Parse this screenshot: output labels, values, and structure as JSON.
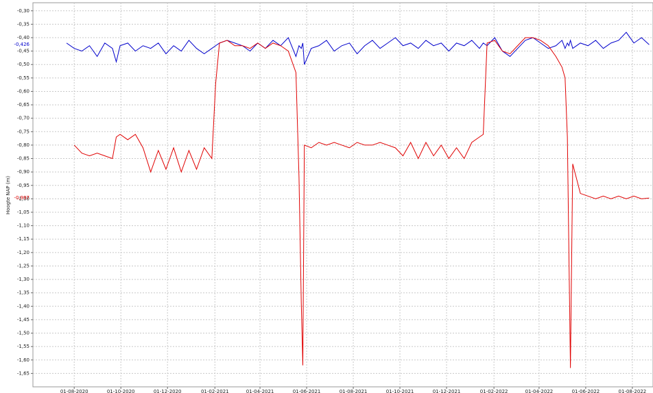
{
  "chart_data": {
    "type": "line",
    "y_label": "Hoogte NAP (m)",
    "x": [
      "2020-07-22",
      "2020-08-01",
      "2020-08-11",
      "2020-08-21",
      "2020-08-31",
      "2020-09-10",
      "2020-09-20",
      "2020-09-25",
      "2020-09-30",
      "2020-10-10",
      "2020-10-20",
      "2020-10-30",
      "2020-11-09",
      "2020-11-19",
      "2020-11-29",
      "2020-12-09",
      "2020-12-19",
      "2020-12-29",
      "2021-01-08",
      "2021-01-18",
      "2021-01-28",
      "2021-02-02",
      "2021-02-07",
      "2021-02-17",
      "2021-02-27",
      "2021-03-09",
      "2021-03-19",
      "2021-03-29",
      "2021-04-08",
      "2021-04-18",
      "2021-04-28",
      "2021-05-08",
      "2021-05-18",
      "2021-05-22",
      "2021-05-25",
      "2021-05-27",
      "2021-05-29",
      "2021-06-07",
      "2021-06-17",
      "2021-06-27",
      "2021-07-07",
      "2021-07-17",
      "2021-07-27",
      "2021-08-06",
      "2021-08-16",
      "2021-08-26",
      "2021-09-05",
      "2021-09-15",
      "2021-09-25",
      "2021-10-05",
      "2021-10-15",
      "2021-10-25",
      "2021-11-04",
      "2021-11-14",
      "2021-11-24",
      "2021-12-04",
      "2021-12-14",
      "2021-12-24",
      "2022-01-03",
      "2022-01-13",
      "2022-01-18",
      "2022-01-23",
      "2022-02-02",
      "2022-02-12",
      "2022-02-22",
      "2022-03-04",
      "2022-03-14",
      "2022-03-24",
      "2022-04-03",
      "2022-04-13",
      "2022-04-23",
      "2022-05-01",
      "2022-05-05",
      "2022-05-08",
      "2022-05-10",
      "2022-05-12",
      "2022-05-15",
      "2022-05-25",
      "2022-06-04",
      "2022-06-14",
      "2022-06-24",
      "2022-07-04",
      "2022-07-14",
      "2022-07-24",
      "2022-08-03",
      "2022-08-13",
      "2022-08-23"
    ],
    "series": [
      {
        "color": "#0000cc",
        "values": [
          -0.42,
          -0.44,
          -0.45,
          -0.43,
          -0.47,
          -0.42,
          -0.44,
          -0.49,
          -0.43,
          -0.42,
          -0.45,
          -0.43,
          -0.44,
          -0.42,
          -0.46,
          -0.43,
          -0.45,
          -0.41,
          -0.44,
          -0.46,
          -0.44,
          -0.43,
          -0.42,
          -0.41,
          -0.42,
          -0.43,
          -0.45,
          -0.42,
          -0.44,
          -0.41,
          -0.43,
          -0.4,
          -0.47,
          -0.43,
          -0.44,
          -0.42,
          -0.5,
          -0.44,
          -0.43,
          -0.41,
          -0.45,
          -0.43,
          -0.42,
          -0.46,
          -0.43,
          -0.41,
          -0.44,
          -0.42,
          -0.4,
          -0.43,
          -0.42,
          -0.44,
          -0.41,
          -0.43,
          -0.42,
          -0.45,
          -0.42,
          -0.43,
          -0.41,
          -0.44,
          -0.42,
          -0.43,
          -0.4,
          -0.45,
          -0.47,
          -0.44,
          -0.41,
          -0.4,
          -0.42,
          -0.44,
          -0.43,
          -0.41,
          -0.44,
          -0.42,
          -0.43,
          -0.41,
          -0.44,
          -0.42,
          -0.43,
          -0.41,
          -0.44,
          -0.42,
          -0.41,
          -0.38,
          -0.42,
          -0.4,
          -0.426
        ]
      },
      {
        "color": "#e00000",
        "values": [
          null,
          -0.8,
          -0.83,
          -0.84,
          -0.83,
          -0.84,
          -0.85,
          -0.77,
          -0.76,
          -0.78,
          -0.76,
          -0.81,
          -0.9,
          -0.82,
          -0.89,
          -0.81,
          -0.9,
          -0.82,
          -0.89,
          -0.81,
          -0.85,
          -0.57,
          -0.42,
          -0.41,
          -0.43,
          -0.43,
          -0.44,
          -0.42,
          -0.44,
          -0.42,
          -0.43,
          -0.45,
          -0.53,
          -0.92,
          -1.39,
          -1.62,
          -0.8,
          -0.81,
          -0.79,
          -0.8,
          -0.79,
          -0.8,
          -0.81,
          -0.79,
          -0.8,
          -0.8,
          -0.79,
          -0.8,
          -0.81,
          -0.84,
          -0.79,
          -0.85,
          -0.79,
          -0.84,
          -0.8,
          -0.85,
          -0.81,
          -0.85,
          -0.79,
          -0.77,
          -0.76,
          -0.42,
          -0.41,
          -0.45,
          -0.46,
          -0.43,
          -0.4,
          -0.4,
          -0.41,
          -0.43,
          -0.47,
          -0.51,
          -0.55,
          -0.77,
          -1.2,
          -1.63,
          -0.87,
          -0.98,
          -0.99,
          -1.0,
          -0.99,
          -1.0,
          -0.99,
          -1.0,
          -0.99,
          -1.0,
          -0.997
        ]
      }
    ],
    "current_labels": [
      {
        "value": -0.426,
        "label": "-0,426",
        "color": "#0000cc"
      },
      {
        "value": -0.997,
        "label": "-0,997",
        "color": "#e00000"
      }
    ],
    "xlim": [
      "2020-06-08",
      "2022-08-28"
    ],
    "xticks": [
      {
        "value": "2020-08-01",
        "label": "01-08-2020"
      },
      {
        "value": "2020-10-01",
        "label": "01-10-2020"
      },
      {
        "value": "2020-12-01",
        "label": "01-12-2020"
      },
      {
        "value": "2021-02-01",
        "label": "01-02-2021"
      },
      {
        "value": "2021-04-01",
        "label": "01-04-2021"
      },
      {
        "value": "2021-06-01",
        "label": "01-06-2021"
      },
      {
        "value": "2021-08-01",
        "label": "01-08-2021"
      },
      {
        "value": "2021-10-01",
        "label": "01-10-2021"
      },
      {
        "value": "2021-12-01",
        "label": "01-12-2021"
      },
      {
        "value": "2022-02-01",
        "label": "01-02-2022"
      },
      {
        "value": "2022-04-01",
        "label": "01-04-2022"
      },
      {
        "value": "2022-06-01",
        "label": "01-06-2022"
      },
      {
        "value": "2022-08-01",
        "label": "01-08-2022"
      }
    ],
    "ylim": [
      -1.7,
      -0.27
    ],
    "yticks": [
      {
        "value": -0.3,
        "label": "-0,30"
      },
      {
        "value": -0.35,
        "label": "-0,35"
      },
      {
        "value": -0.4,
        "label": "-0,40"
      },
      {
        "value": -0.45,
        "label": "-0,45"
      },
      {
        "value": -0.5,
        "label": "-0,50"
      },
      {
        "value": -0.55,
        "label": "-0,55"
      },
      {
        "value": -0.6,
        "label": "-0,60"
      },
      {
        "value": -0.65,
        "label": "-0,65"
      },
      {
        "value": -0.7,
        "label": "-0,70"
      },
      {
        "value": -0.75,
        "label": "-0,75"
      },
      {
        "value": -0.8,
        "label": "-0,80"
      },
      {
        "value": -0.85,
        "label": "-0,85"
      },
      {
        "value": -0.9,
        "label": "-0,90"
      },
      {
        "value": -0.95,
        "label": "-0,95"
      },
      {
        "value": -1.0,
        "label": "-1,00"
      },
      {
        "value": -1.05,
        "label": "-1,05"
      },
      {
        "value": -1.1,
        "label": "-1,10"
      },
      {
        "value": -1.15,
        "label": "-1,15"
      },
      {
        "value": -1.2,
        "label": "-1,20"
      },
      {
        "value": -1.25,
        "label": "-1,25"
      },
      {
        "value": -1.3,
        "label": "-1,30"
      },
      {
        "value": -1.35,
        "label": "-1,35"
      },
      {
        "value": -1.4,
        "label": "-1,40"
      },
      {
        "value": -1.45,
        "label": "-1,45"
      },
      {
        "value": -1.5,
        "label": "-1,50"
      },
      {
        "value": -1.55,
        "label": "-1,55"
      },
      {
        "value": -1.6,
        "label": "-1,60"
      },
      {
        "value": -1.65,
        "label": "-1,65"
      }
    ],
    "grid": true
  }
}
